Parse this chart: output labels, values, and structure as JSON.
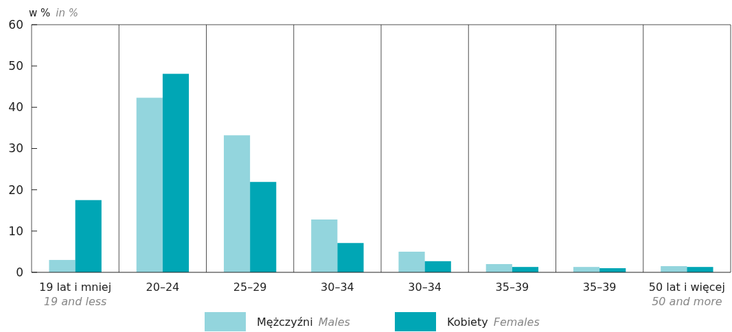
{
  "chart_data": {
    "type": "bar",
    "ylabel": "w %\nin %",
    "categories": [
      "19 lat i mniej\n19 and less",
      "20–24",
      "25–29",
      "30–34",
      "30–34",
      "35–39",
      "35–39",
      "50 lat i więcej\n50 and more"
    ],
    "series": [
      {
        "name": "Mężczyźni\nMales",
        "color": "#93d5dd",
        "values": [
          3.0,
          42.3,
          33.2,
          12.8,
          5.0,
          2.0,
          1.3,
          1.5
        ]
      },
      {
        "name": "Kobiety\nFemales",
        "color": "#00a6b5",
        "values": [
          17.5,
          48.1,
          21.9,
          7.1,
          2.7,
          1.3,
          1.0,
          1.3
        ]
      }
    ],
    "ylim": [
      0,
      60
    ],
    "yticks": [
      0,
      10,
      20,
      30,
      40,
      50,
      60
    ],
    "grid": "x",
    "legend": "bottom"
  }
}
